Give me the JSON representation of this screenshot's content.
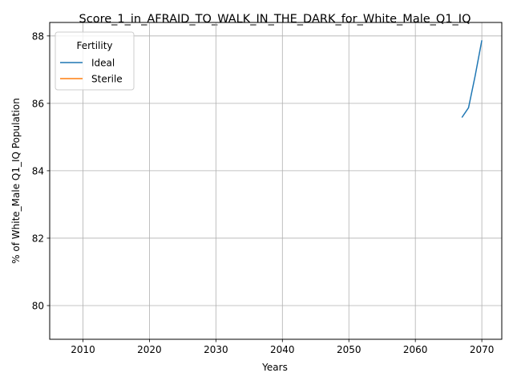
{
  "chart_data": {
    "type": "line",
    "title": "Score_1_in_AFRAID_TO_WALK_IN_THE_DARK_for_White_Male_Q1_IQ",
    "xlabel": "Years",
    "ylabel": "% of White_Male Q1_IQ Population",
    "xlim": [
      2005,
      2073
    ],
    "ylim": [
      79,
      88.4
    ],
    "xticks": [
      2010,
      2020,
      2030,
      2040,
      2050,
      2060,
      2070
    ],
    "yticks": [
      80,
      82,
      84,
      86,
      88
    ],
    "grid": true,
    "legend": {
      "title": "Fertility",
      "placement": "top-left",
      "entries": [
        "Ideal",
        "Sterile"
      ]
    },
    "series": [
      {
        "name": "Ideal",
        "color": "#1f77b4",
        "points": [
          [
            2067,
            85.58
          ],
          [
            2068,
            85.87
          ],
          [
            2069,
            86.82
          ],
          [
            2070,
            87.87
          ]
        ]
      },
      {
        "name": "Sterile",
        "color": "#ff7f0e",
        "points": []
      }
    ]
  }
}
